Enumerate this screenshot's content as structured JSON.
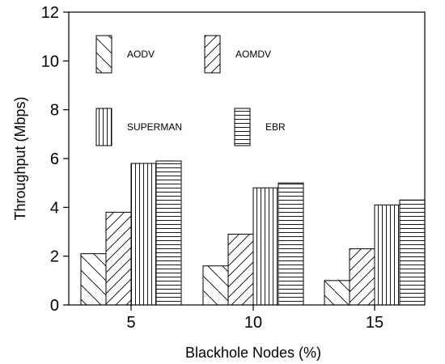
{
  "chart_data": {
    "type": "bar",
    "title": "",
    "xlabel": "Blackhole Nodes (%)",
    "ylabel": "Throughput (Mbps)",
    "ylim": [
      0,
      12
    ],
    "yticks": [
      "0",
      "2",
      "4",
      "6",
      "8",
      "10",
      "12"
    ],
    "categories": [
      "5",
      "10",
      "15"
    ],
    "series": [
      {
        "name": "AODV",
        "values": [
          2.1,
          1.6,
          1.0
        ],
        "pattern": "backslash"
      },
      {
        "name": "AOMDV",
        "values": [
          3.8,
          2.9,
          2.3
        ],
        "pattern": "slash"
      },
      {
        "name": "SUPERMAN",
        "values": [
          5.8,
          4.8,
          4.1
        ],
        "pattern": "vertical"
      },
      {
        "name": "EBR",
        "values": [
          5.9,
          5.0,
          4.3
        ],
        "pattern": "horizontal"
      }
    ],
    "grid": false,
    "legend_position": "inside top-left",
    "colors": {
      "stroke": "#000000",
      "fill": "#ffffff"
    }
  }
}
